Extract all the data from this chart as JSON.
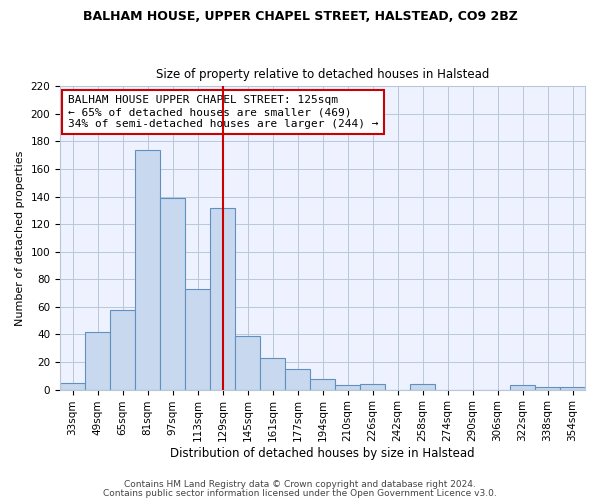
{
  "title1": "BALHAM HOUSE, UPPER CHAPEL STREET, HALSTEAD, CO9 2BZ",
  "title2": "Size of property relative to detached houses in Halstead",
  "xlabel": "Distribution of detached houses by size in Halstead",
  "ylabel": "Number of detached properties",
  "categories": [
    "33sqm",
    "49sqm",
    "65sqm",
    "81sqm",
    "97sqm",
    "113sqm",
    "129sqm",
    "145sqm",
    "161sqm",
    "177sqm",
    "194sqm",
    "210sqm",
    "226sqm",
    "242sqm",
    "258sqm",
    "274sqm",
    "290sqm",
    "306sqm",
    "322sqm",
    "338sqm",
    "354sqm"
  ],
  "values": [
    5,
    42,
    58,
    174,
    139,
    73,
    132,
    39,
    23,
    15,
    8,
    3,
    4,
    0,
    4,
    0,
    0,
    0,
    3,
    2,
    2
  ],
  "bar_color": "#c8d8ee",
  "bar_edge_color": "#6090c0",
  "vline_x": 6,
  "vline_color": "#cc0000",
  "annotation_text": "BALHAM HOUSE UPPER CHAPEL STREET: 125sqm\n← 65% of detached houses are smaller (469)\n34% of semi-detached houses are larger (244) →",
  "annotation_box_color": "#ffffff",
  "annotation_box_edge": "#cc0000",
  "footer1": "Contains HM Land Registry data © Crown copyright and database right 2024.",
  "footer2": "Contains public sector information licensed under the Open Government Licence v3.0.",
  "bg_color": "#ffffff",
  "plot_bg_color": "#eef2ff",
  "grid_color": "#b8c8d8",
  "ylim": [
    0,
    220
  ],
  "title1_fontsize": 9,
  "title2_fontsize": 8.5,
  "ylabel_fontsize": 8,
  "xlabel_fontsize": 8.5,
  "tick_fontsize": 7.5,
  "footer_fontsize": 6.5
}
